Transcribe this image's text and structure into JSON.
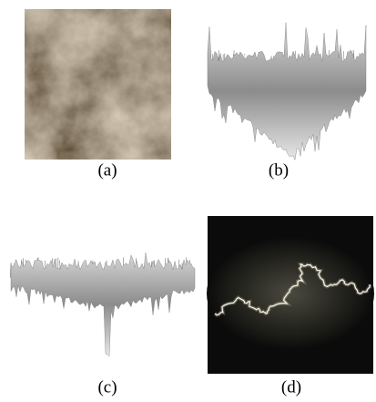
{
  "figure": {
    "panels": [
      {
        "caption": "(a)"
      },
      {
        "caption": "(b)"
      },
      {
        "caption": "(c)"
      },
      {
        "caption": "(d)"
      }
    ]
  }
}
